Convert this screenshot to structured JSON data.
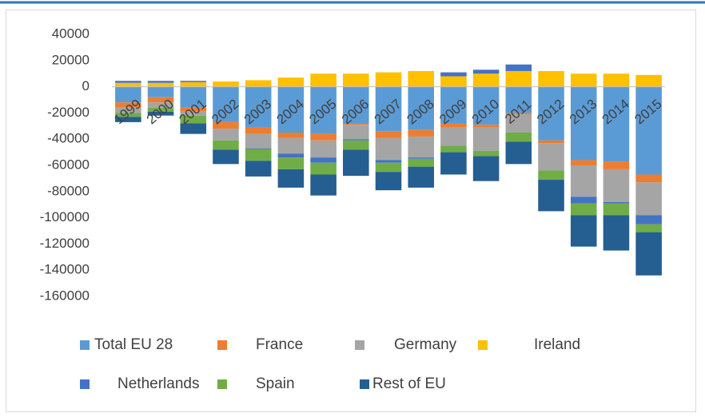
{
  "chart_data": {
    "type": "bar",
    "stacked": true,
    "categories": [
      "1999",
      "2000",
      "2001",
      "2002",
      "2003",
      "2004",
      "2005",
      "2006",
      "2007",
      "2008",
      "2009",
      "2010",
      "2011",
      "2012",
      "2013",
      "2014",
      "2015"
    ],
    "series": [
      {
        "name": "Total EU 28",
        "color": "#5b9bd5",
        "values": [
          -12000,
          -8000,
          -16000,
          -27000,
          -31000,
          -35000,
          -36000,
          -28000,
          -34000,
          -33000,
          -28000,
          -29000,
          -20000,
          -41000,
          -56000,
          -57000,
          -67000
        ]
      },
      {
        "name": "France",
        "color": "#ed7d31",
        "values": [
          -4000,
          -4000,
          -3000,
          -5000,
          -5000,
          -4000,
          -5000,
          -1000,
          -5000,
          -5000,
          -3000,
          -2000,
          -1000,
          -2000,
          -4000,
          -6000,
          -6000
        ]
      },
      {
        "name": "Germany",
        "color": "#a5a5a5",
        "values": [
          -4000,
          -4000,
          -3000,
          -9000,
          -11000,
          -12000,
          -13000,
          -11000,
          -17000,
          -16000,
          -14000,
          -18000,
          -14000,
          -21000,
          -24000,
          -25000,
          -25000
        ]
      },
      {
        "name": "Ireland",
        "color": "#ffc000",
        "values": [
          3000,
          3000,
          3500,
          4000,
          5000,
          7000,
          10000,
          10000,
          11000,
          12000,
          8000,
          10000,
          12000,
          12000,
          10000,
          10000,
          9000
        ]
      },
      {
        "name": "Netherlands",
        "color": "#4472c4",
        "values": [
          1500,
          1500,
          1000,
          0,
          -500,
          -3000,
          -4000,
          -1000,
          -2000,
          -1000,
          3000,
          3000,
          5000,
          0,
          -5000,
          -1000,
          -7000
        ]
      },
      {
        "name": "Spain",
        "color": "#70ad47",
        "values": [
          -3000,
          -3000,
          -6000,
          -7000,
          -9000,
          -9000,
          -9000,
          -7000,
          -7000,
          -6000,
          -5000,
          -4000,
          -7000,
          -7000,
          -9000,
          -9000,
          -6000
        ]
      },
      {
        "name": "Rest of EU",
        "color": "#255e91",
        "values": [
          -4000,
          -3000,
          -8000,
          -11000,
          -12000,
          -14000,
          -16000,
          -20000,
          -14000,
          -16000,
          -17000,
          -19000,
          -17000,
          -24000,
          -24000,
          -27000,
          -33000
        ]
      }
    ],
    "ylim": [
      -160000,
      40000
    ],
    "yticks": [
      -160000,
      -140000,
      -120000,
      -100000,
      -80000,
      -60000,
      -40000,
      -20000,
      0,
      20000,
      40000
    ],
    "grid": false,
    "legend": "bottom"
  }
}
